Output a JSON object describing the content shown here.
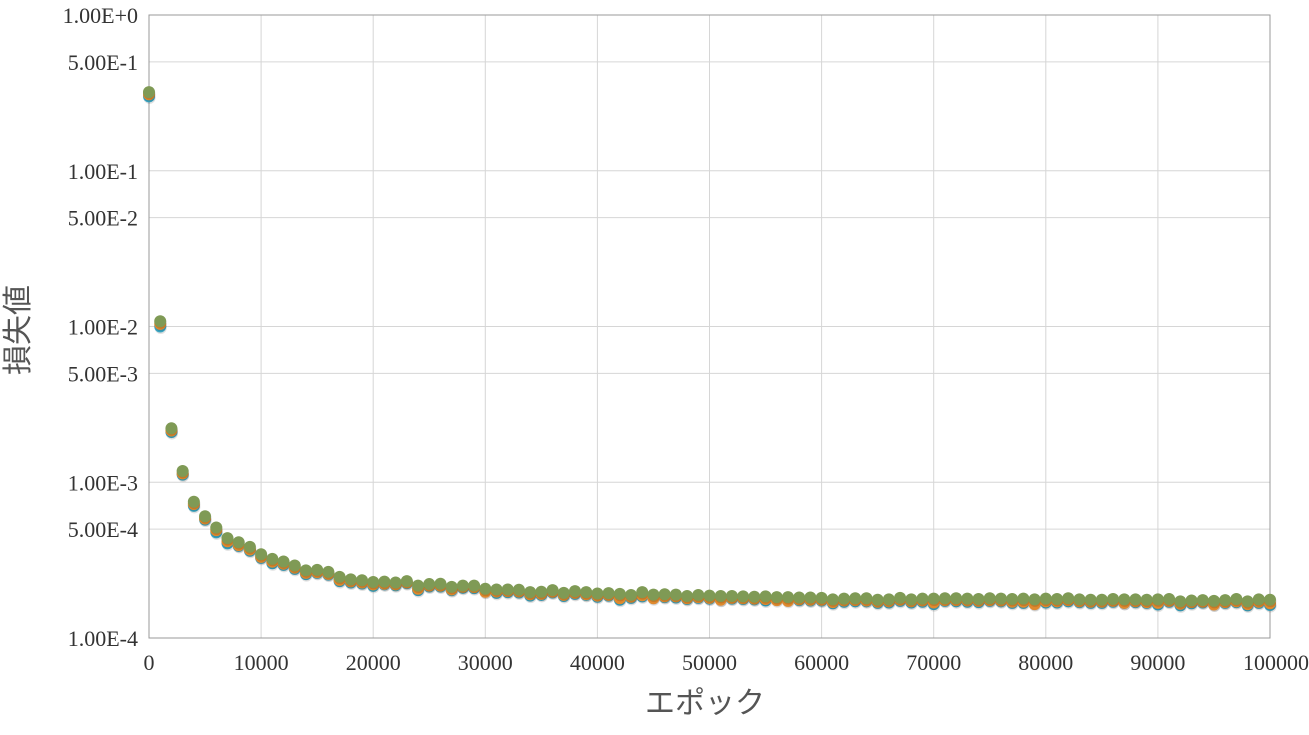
{
  "chart_data": {
    "type": "scatter",
    "title": "",
    "xlabel": "エポック",
    "ylabel": "損失値",
    "xlim": [
      0,
      100000
    ],
    "ylim": [
      0.0001,
      1
    ],
    "yscale": "log",
    "grid": true,
    "legend": "none",
    "x_ticks": [
      {
        "value": 0,
        "label": "0"
      },
      {
        "value": 10000,
        "label": "10000"
      },
      {
        "value": 20000,
        "label": "20000"
      },
      {
        "value": 30000,
        "label": "30000"
      },
      {
        "value": 40000,
        "label": "40000"
      },
      {
        "value": 50000,
        "label": "50000"
      },
      {
        "value": 60000,
        "label": "60000"
      },
      {
        "value": 70000,
        "label": "70000"
      },
      {
        "value": 80000,
        "label": "80000"
      },
      {
        "value": 90000,
        "label": "90000"
      },
      {
        "value": 100000,
        "label": "100000"
      }
    ],
    "y_ticks": [
      {
        "value": 1,
        "label": "1.00E+0"
      },
      {
        "value": 0.5,
        "label": "5.00E-1"
      },
      {
        "value": 0.1,
        "label": "1.00E-1"
      },
      {
        "value": 0.05,
        "label": "5.00E-2"
      },
      {
        "value": 0.01,
        "label": "1.00E-2"
      },
      {
        "value": 0.005,
        "label": "5.00E-3"
      },
      {
        "value": 0.001,
        "label": "1.00E-3"
      },
      {
        "value": 0.0005,
        "label": "5.00E-4"
      },
      {
        "value": 0.0001,
        "label": "1.00E-4"
      }
    ],
    "x": [
      0,
      1000,
      2000,
      3000,
      4000,
      5000,
      6000,
      7000,
      8000,
      9000,
      10000,
      11000,
      12000,
      13000,
      14000,
      15000,
      16000,
      17000,
      18000,
      19000,
      20000,
      21000,
      22000,
      23000,
      24000,
      25000,
      26000,
      27000,
      28000,
      29000,
      30000,
      31000,
      32000,
      33000,
      34000,
      35000,
      36000,
      37000,
      38000,
      39000,
      40000,
      41000,
      42000,
      43000,
      44000,
      45000,
      46000,
      47000,
      48000,
      49000,
      50000,
      51000,
      52000,
      53000,
      54000,
      55000,
      56000,
      57000,
      58000,
      59000,
      60000,
      61000,
      62000,
      63000,
      64000,
      65000,
      66000,
      67000,
      68000,
      69000,
      70000,
      71000,
      72000,
      73000,
      74000,
      75000,
      76000,
      77000,
      78000,
      79000,
      80000,
      81000,
      82000,
      83000,
      84000,
      85000,
      86000,
      87000,
      88000,
      89000,
      90000,
      91000,
      92000,
      93000,
      94000,
      95000,
      96000,
      97000,
      98000,
      99000,
      100000
    ],
    "series": [
      {
        "color": "#3aa7c4",
        "values": [
          0.3,
          0.01,
          0.0021,
          0.00112,
          0.000705,
          0.000575,
          0.000477,
          0.000405,
          0.00039,
          0.000363,
          0.000327,
          0.000302,
          0.000295,
          0.000278,
          0.000257,
          0.000262,
          0.000255,
          0.000232,
          0.000227,
          0.000224,
          0.000216,
          0.000221,
          0.000218,
          0.000225,
          0.000203,
          0.000214,
          0.000214,
          0.000203,
          0.00021,
          0.000209,
          0.0002,
          0.000195,
          0.000197,
          0.000196,
          0.000187,
          0.000189,
          0.000196,
          0.000186,
          0.000192,
          0.000189,
          0.000184,
          0.000187,
          0.000176,
          0.000181,
          0.000185,
          0.000183,
          0.000183,
          0.000182,
          0.000178,
          0.000181,
          0.000179,
          0.000177,
          0.000179,
          0.000178,
          0.000177,
          0.000174,
          0.000178,
          0.000176,
          0.000175,
          0.000174,
          0.000174,
          0.000167,
          0.000171,
          0.000172,
          0.000172,
          0.000168,
          0.000169,
          0.000173,
          0.000169,
          0.000171,
          0.000165,
          0.000173,
          0.000172,
          0.000171,
          0.00017,
          0.000173,
          0.000172,
          0.000168,
          0.000168,
          0.000167,
          0.000169,
          0.000169,
          0.000172,
          0.00017,
          0.000168,
          0.000168,
          0.000171,
          0.000168,
          0.00017,
          0.000168,
          0.000164,
          0.000171,
          0.000162,
          0.000167,
          0.000169,
          0.000165,
          0.000168,
          0.00017,
          0.000162,
          0.000168,
          0.000163
        ]
      },
      {
        "color": "#e08a2e",
        "values": [
          0.31,
          0.0104,
          0.00215,
          0.00114,
          0.000725,
          0.000585,
          0.000493,
          0.000418,
          0.000395,
          0.00037,
          0.000332,
          0.000309,
          0.0003,
          0.000283,
          0.000262,
          0.000265,
          0.000258,
          0.000236,
          0.000231,
          0.000227,
          0.000221,
          0.000223,
          0.000221,
          0.000227,
          0.000207,
          0.000217,
          0.000217,
          0.000205,
          0.000213,
          0.000212,
          0.000198,
          0.000199,
          0.0002,
          0.000199,
          0.000191,
          0.000192,
          0.000198,
          0.000189,
          0.000195,
          0.000191,
          0.000187,
          0.000189,
          0.00018,
          0.000184,
          0.000188,
          0.00018,
          0.000185,
          0.000185,
          0.00018,
          0.000183,
          0.000181,
          0.000176,
          0.000181,
          0.00018,
          0.000179,
          0.000178,
          0.000175,
          0.000173,
          0.000177,
          0.000176,
          0.000176,
          0.00017,
          0.000174,
          0.000175,
          0.000174,
          0.000171,
          0.000172,
          0.000176,
          0.000172,
          0.000174,
          0.000169,
          0.000175,
          0.000175,
          0.000174,
          0.000173,
          0.000175,
          0.000174,
          0.000171,
          0.000171,
          0.000165,
          0.000172,
          0.000172,
          0.000175,
          0.000172,
          0.000171,
          0.000171,
          0.000173,
          0.000168,
          0.000172,
          0.00017,
          0.000168,
          0.000173,
          0.000166,
          0.00017,
          0.000171,
          0.000164,
          0.00017,
          0.000172,
          0.000165,
          0.000171,
          0.000167
        ]
      },
      {
        "color": "#7f9a55",
        "values": [
          0.32,
          0.0108,
          0.00222,
          0.00118,
          0.00075,
          0.000605,
          0.000512,
          0.000438,
          0.000412,
          0.000385,
          0.000345,
          0.000322,
          0.00031,
          0.000292,
          0.000272,
          0.000274,
          0.000266,
          0.000247,
          0.000238,
          0.000235,
          0.000229,
          0.00023,
          0.000227,
          0.000232,
          0.000217,
          0.000222,
          0.000223,
          0.000213,
          0.000217,
          0.000217,
          0.000207,
          0.000205,
          0.000205,
          0.000204,
          0.000197,
          0.000198,
          0.000203,
          0.000195,
          0.0002,
          0.000197,
          0.000193,
          0.000194,
          0.000192,
          0.000189,
          0.000197,
          0.00019,
          0.000191,
          0.00019,
          0.000186,
          0.000189,
          0.000187,
          0.000186,
          0.000186,
          0.000185,
          0.000184,
          0.000185,
          0.000183,
          0.000183,
          0.000182,
          0.000182,
          0.000181,
          0.000177,
          0.000179,
          0.00018,
          0.00018,
          0.000176,
          0.000177,
          0.000181,
          0.000177,
          0.000179,
          0.000179,
          0.00018,
          0.00018,
          0.000179,
          0.000178,
          0.00018,
          0.000179,
          0.000178,
          0.000179,
          0.000177,
          0.000179,
          0.000178,
          0.00018,
          0.000177,
          0.000176,
          0.000176,
          0.000178,
          0.000177,
          0.000177,
          0.000176,
          0.000177,
          0.000178,
          0.000172,
          0.000174,
          0.000175,
          0.000173,
          0.000175,
          0.000178,
          0.000172,
          0.000177,
          0.000176
        ]
      }
    ]
  }
}
